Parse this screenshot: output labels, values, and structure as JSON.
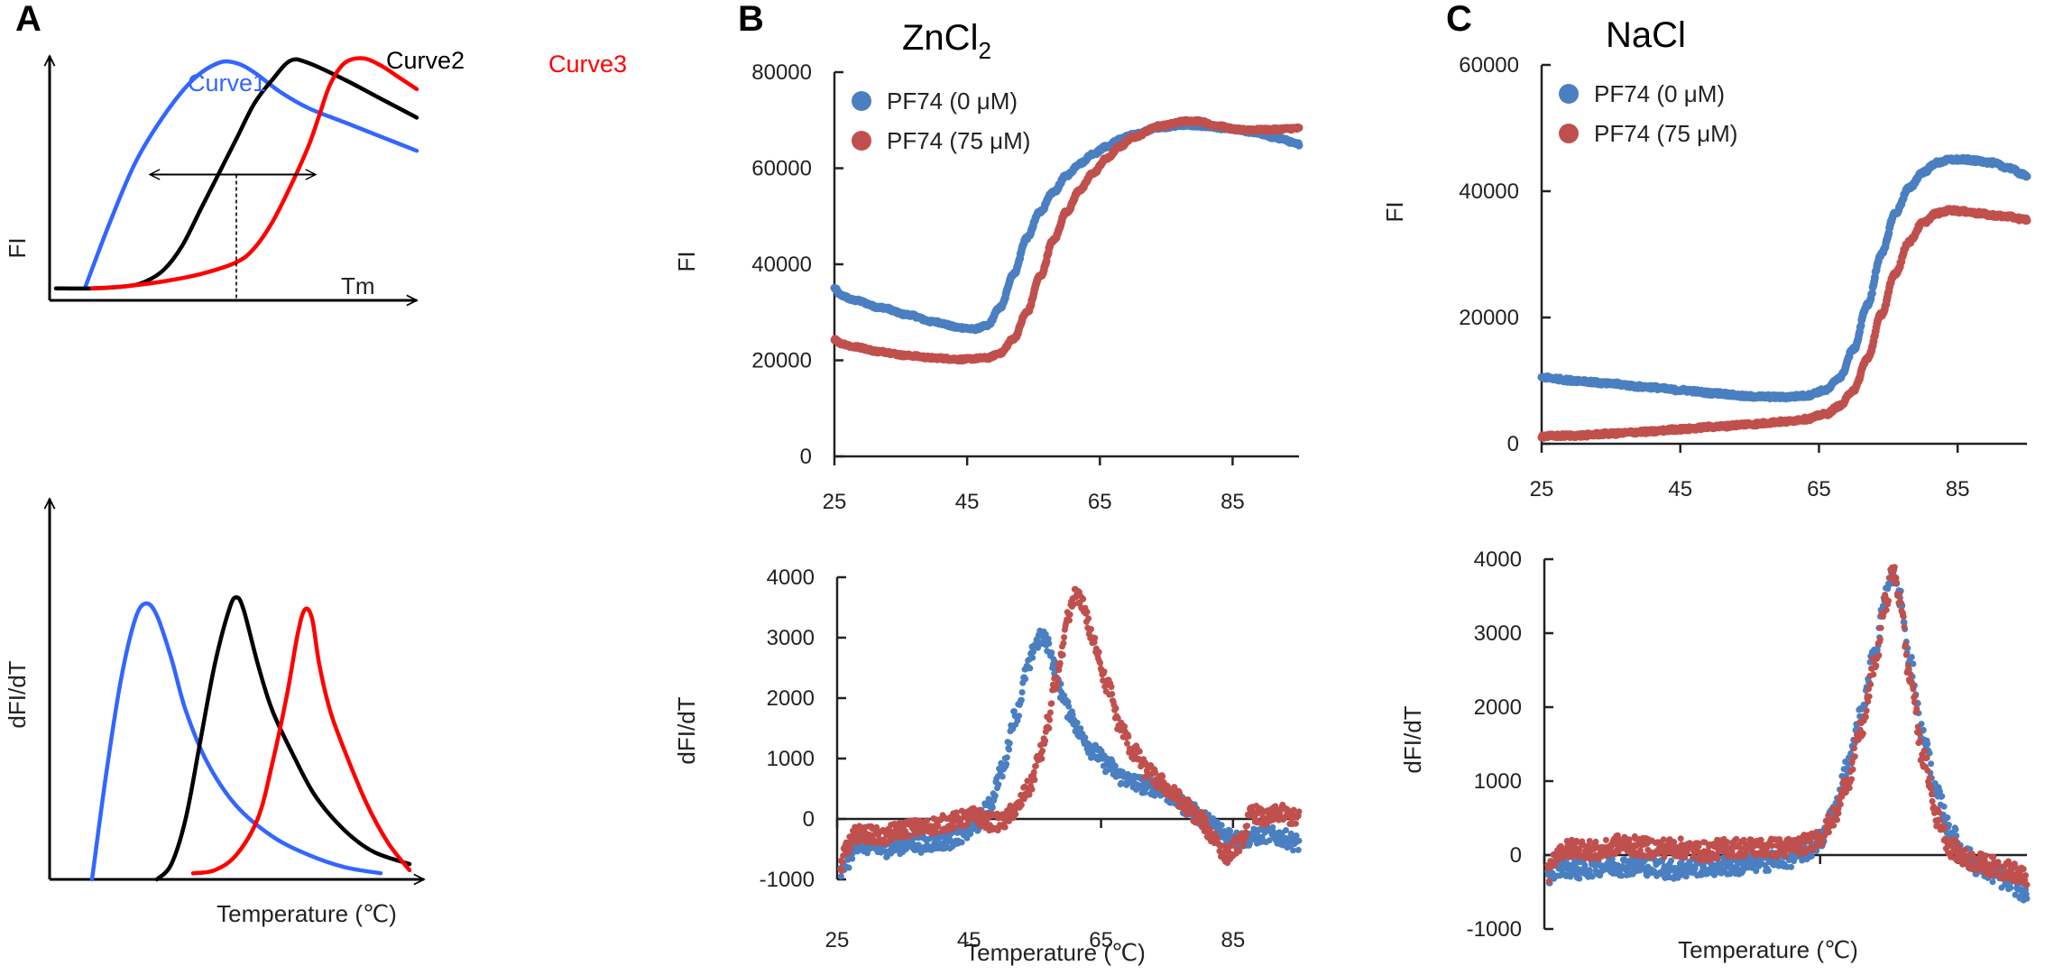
{
  "figure": {
    "panels": [
      "A",
      "B",
      "C"
    ]
  },
  "chart_data": [
    {
      "id": "A-top",
      "panel": "A",
      "type": "line",
      "schematic": true,
      "title": "",
      "xlabel": "",
      "ylabel": "FI",
      "annotation": "Tm",
      "series": [
        {
          "name": "Curve1",
          "color": "#3366ff",
          "x": [
            0.08,
            0.15,
            0.22,
            0.3,
            0.38,
            0.45,
            0.5,
            0.55,
            0.62,
            0.7,
            0.8,
            0.9,
            1.0
          ],
          "y": [
            0.02,
            0.3,
            0.55,
            0.75,
            0.9,
            0.97,
            0.97,
            0.93,
            0.85,
            0.78,
            0.72,
            0.66,
            0.6
          ]
        },
        {
          "name": "Curve2",
          "color": "#000000",
          "x": [
            0.0,
            0.1,
            0.2,
            0.25,
            0.3,
            0.35,
            0.4,
            0.45,
            0.5,
            0.55,
            0.6,
            0.65,
            0.7,
            0.8,
            0.9,
            1.0
          ],
          "y": [
            0.02,
            0.02,
            0.03,
            0.05,
            0.1,
            0.2,
            0.35,
            0.5,
            0.65,
            0.8,
            0.9,
            0.98,
            0.97,
            0.9,
            0.82,
            0.74
          ]
        },
        {
          "name": "Curve3",
          "color": "#ff0000",
          "x": [
            0.1,
            0.2,
            0.3,
            0.4,
            0.5,
            0.55,
            0.6,
            0.65,
            0.7,
            0.73,
            0.76,
            0.8,
            0.85,
            0.9,
            0.95,
            1.0
          ],
          "y": [
            0.02,
            0.03,
            0.05,
            0.08,
            0.13,
            0.19,
            0.3,
            0.45,
            0.62,
            0.75,
            0.88,
            0.97,
            0.99,
            0.96,
            0.91,
            0.86
          ]
        }
      ],
      "tm_arrow": {
        "x_from": 0.26,
        "x_to": 0.72,
        "y": 0.5,
        "tm_x": 0.5
      }
    },
    {
      "id": "A-bottom",
      "panel": "A",
      "type": "line",
      "schematic": true,
      "xlabel": "Temperature (℃)",
      "ylabel": "dFI/dT",
      "series": [
        {
          "name": "Curve1",
          "color": "#3366ff",
          "x": [
            0.1,
            0.14,
            0.18,
            0.22,
            0.25,
            0.28,
            0.32,
            0.36,
            0.42,
            0.5,
            0.6,
            0.7,
            0.8,
            0.9
          ],
          "y": [
            0.0,
            0.35,
            0.65,
            0.85,
            0.9,
            0.86,
            0.72,
            0.55,
            0.38,
            0.24,
            0.14,
            0.08,
            0.04,
            0.02
          ]
        },
        {
          "name": "Curve2",
          "color": "#000000",
          "x": [
            0.28,
            0.32,
            0.36,
            0.4,
            0.44,
            0.48,
            0.5,
            0.52,
            0.56,
            0.6,
            0.66,
            0.72,
            0.8,
            0.88,
            0.98
          ],
          "y": [
            0.0,
            0.05,
            0.2,
            0.45,
            0.7,
            0.88,
            0.92,
            0.88,
            0.7,
            0.55,
            0.4,
            0.27,
            0.16,
            0.09,
            0.05
          ]
        },
        {
          "name": "Curve3",
          "color": "#ff0000",
          "x": [
            0.38,
            0.44,
            0.5,
            0.56,
            0.6,
            0.64,
            0.67,
            0.69,
            0.71,
            0.73,
            0.76,
            0.8,
            0.86,
            0.92,
            0.98
          ],
          "y": [
            0.02,
            0.03,
            0.08,
            0.2,
            0.38,
            0.6,
            0.8,
            0.88,
            0.85,
            0.7,
            0.55,
            0.42,
            0.25,
            0.12,
            0.03
          ]
        }
      ]
    },
    {
      "id": "B-top",
      "panel": "B",
      "type": "scatter",
      "title": "ZnCl₂",
      "title_base": "ZnCl",
      "title_sub": "2",
      "xlabel": "",
      "ylabel": "FI",
      "xlim": [
        25,
        95
      ],
      "ylim": [
        0,
        80000
      ],
      "xticks": [
        25,
        45,
        65,
        85
      ],
      "yticks": [
        0,
        20000,
        40000,
        60000,
        80000
      ],
      "legend": "top-left",
      "series": [
        {
          "name": "PF74 (0 μM)",
          "color": "#4a7fc1",
          "x": [
            25,
            26,
            28,
            32,
            36,
            40,
            44,
            46,
            48,
            50,
            52,
            54,
            56,
            58,
            60,
            62,
            64,
            66,
            68,
            70,
            74,
            78,
            80,
            84,
            88,
            92,
            95
          ],
          "y": [
            35000,
            33500,
            32500,
            31000,
            29500,
            28000,
            26800,
            26500,
            27200,
            31000,
            38000,
            45500,
            51000,
            55000,
            58500,
            61000,
            63000,
            64500,
            66000,
            67000,
            68500,
            69000,
            68800,
            68300,
            67500,
            66200,
            65000
          ]
        },
        {
          "name": "PF74 (75 μM)",
          "color": "#c0504d",
          "x": [
            25,
            26,
            28,
            32,
            36,
            40,
            44,
            48,
            50,
            52,
            54,
            56,
            58,
            60,
            62,
            64,
            66,
            68,
            70,
            74,
            78,
            80,
            82,
            86,
            90,
            95
          ],
          "y": [
            24500,
            23500,
            22800,
            21800,
            21000,
            20500,
            20200,
            20500,
            21500,
            24500,
            30000,
            37500,
            45000,
            51000,
            55500,
            59000,
            62000,
            64500,
            66500,
            68800,
            69800,
            69800,
            69000,
            68000,
            68000,
            68300
          ]
        }
      ]
    },
    {
      "id": "B-bottom",
      "panel": "B",
      "type": "scatter",
      "xlabel": "Temperature  (℃)",
      "ylabel": "dFI/dT",
      "xlim": [
        25,
        95
      ],
      "ylim": [
        -1000,
        4000
      ],
      "xticks": [
        25,
        45,
        65,
        85
      ],
      "yticks": [
        -1000,
        0,
        1000,
        2000,
        3000,
        4000
      ],
      "series": [
        {
          "name": "PF74 (0 μM)",
          "color": "#4a7fc1",
          "x": [
            25.5,
            26.5,
            28,
            30,
            32,
            34,
            36,
            38,
            40,
            42,
            44,
            46,
            48,
            50,
            52,
            54,
            55,
            56,
            57,
            58,
            59,
            60,
            62,
            64,
            66,
            68,
            70,
            72,
            74,
            76,
            78,
            80,
            82,
            84,
            86,
            88,
            90,
            92,
            95
          ],
          "y": [
            -900,
            -700,
            -400,
            -450,
            -500,
            -450,
            -400,
            -420,
            -380,
            -350,
            -250,
            -100,
            200,
            800,
            1700,
            2500,
            2900,
            3000,
            2900,
            2500,
            2100,
            1800,
            1400,
            1100,
            900,
            700,
            600,
            550,
            500,
            350,
            200,
            50,
            -100,
            -250,
            -350,
            -300,
            -250,
            -300,
            -400
          ]
        },
        {
          "name": "PF74 (75 μM)",
          "color": "#c0504d",
          "x": [
            25.5,
            26.5,
            28,
            30,
            32,
            34,
            36,
            38,
            40,
            42,
            44,
            46,
            48,
            50,
            52,
            54,
            56,
            57,
            58,
            59,
            60,
            61,
            62,
            64,
            66,
            68,
            70,
            72,
            74,
            76,
            78,
            80,
            82,
            84,
            86,
            88,
            90,
            92,
            95
          ],
          "y": [
            -800,
            -450,
            -250,
            -250,
            -300,
            -200,
            -150,
            -150,
            -100,
            -50,
            0,
            50,
            -50,
            -50,
            150,
            500,
            1100,
            1600,
            2200,
            2700,
            3300,
            3700,
            3600,
            2900,
            2200,
            1500,
            1100,
            800,
            600,
            400,
            200,
            0,
            -300,
            -600,
            -400,
            100,
            0,
            100,
            0
          ]
        }
      ]
    },
    {
      "id": "C-top",
      "panel": "C",
      "type": "scatter",
      "title": "NaCl",
      "xlabel": "",
      "ylabel": "FI",
      "xlim": [
        25,
        95
      ],
      "ylim": [
        0,
        60000
      ],
      "xticks": [
        25,
        45,
        65,
        85
      ],
      "yticks": [
        0,
        20000,
        40000,
        60000
      ],
      "legend": "top-left",
      "series": [
        {
          "name": "PF74 (0 μM)",
          "color": "#4a7fc1",
          "x": [
            25,
            30,
            35,
            40,
            45,
            50,
            55,
            60,
            63,
            66,
            68,
            70,
            72,
            74,
            76,
            78,
            80,
            82,
            84,
            86,
            88,
            90,
            92,
            95
          ],
          "y": [
            10500,
            10000,
            9500,
            9000,
            8500,
            8000,
            7500,
            7400,
            7600,
            8500,
            10500,
            15000,
            22000,
            30000,
            36500,
            40500,
            43000,
            44500,
            45000,
            45000,
            44800,
            44500,
            43800,
            42500
          ]
        },
        {
          "name": "PF74 (75 μM)",
          "color": "#c0504d",
          "x": [
            25,
            30,
            35,
            40,
            45,
            50,
            55,
            60,
            63,
            66,
            68,
            70,
            72,
            74,
            76,
            78,
            80,
            82,
            84,
            86,
            88,
            90,
            92,
            95
          ],
          "y": [
            1200,
            1300,
            1600,
            1900,
            2300,
            2700,
            3100,
            3500,
            3900,
            4700,
            6000,
            8500,
            13500,
            20500,
            27000,
            32000,
            35000,
            36500,
            37000,
            36800,
            36500,
            36200,
            36000,
            35500
          ]
        }
      ]
    },
    {
      "id": "C-bottom",
      "panel": "C",
      "type": "scatter",
      "xlabel": "Temperature (℃)",
      "ylabel": "dFI/dT",
      "xlim": [
        25,
        95
      ],
      "ylim": [
        -1000,
        4000
      ],
      "xticks": [
        25,
        45,
        65,
        85
      ],
      "yticks": [
        -1000,
        0,
        1000,
        2000,
        3000,
        4000
      ],
      "series": [
        {
          "name": "PF74 (0 μM)",
          "color": "#4a7fc1",
          "x": [
            25.5,
            27,
            30,
            33,
            36,
            40,
            44,
            48,
            52,
            56,
            60,
            63,
            65,
            67,
            69,
            71,
            73,
            74.5,
            75.5,
            76.5,
            78,
            80,
            82,
            84,
            86,
            88,
            90,
            92,
            95
          ],
          "y": [
            -300,
            -150,
            -200,
            -150,
            -150,
            -150,
            -200,
            -150,
            -150,
            -100,
            -50,
            50,
            200,
            600,
            1200,
            1900,
            2800,
            3500,
            3800,
            3500,
            2600,
            1600,
            800,
            300,
            0,
            -150,
            -250,
            -350,
            -500
          ]
        },
        {
          "name": "PF74 (75 μM)",
          "color": "#c0504d",
          "x": [
            25.5,
            27,
            30,
            33,
            36,
            40,
            44,
            48,
            52,
            56,
            60,
            63,
            65,
            67,
            69,
            71,
            73,
            74.5,
            75.5,
            76.5,
            78,
            80,
            82,
            84,
            86,
            88,
            90,
            92,
            95
          ],
          "y": [
            -250,
            50,
            100,
            50,
            150,
            100,
            100,
            50,
            100,
            100,
            100,
            150,
            250,
            500,
            1000,
            1700,
            2600,
            3400,
            3850,
            3500,
            2400,
            1300,
            500,
            100,
            -50,
            -100,
            -150,
            -200,
            -300
          ]
        }
      ]
    }
  ]
}
